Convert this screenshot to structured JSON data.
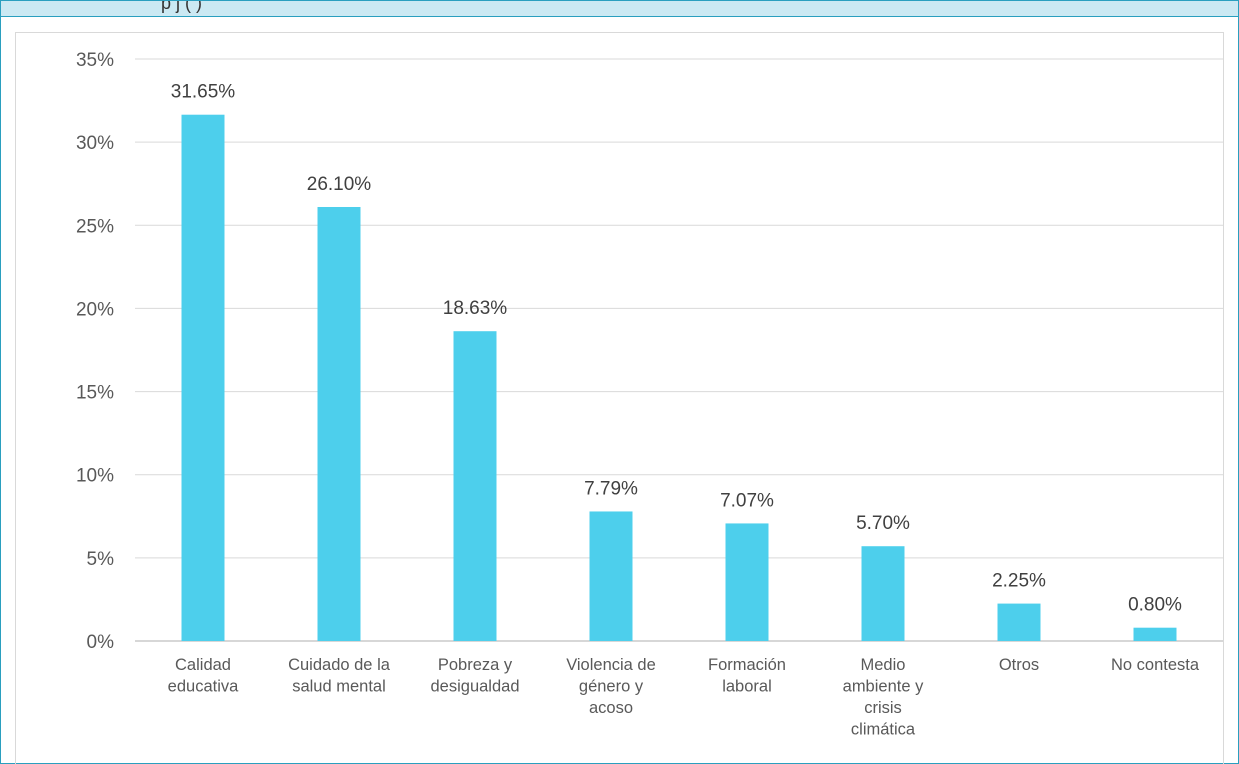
{
  "header": {
    "title": "p                      j        (   )"
  },
  "chart_data": {
    "type": "bar",
    "title": "",
    "xlabel": "",
    "ylabel": "",
    "categories": [
      [
        "Calidad",
        "educativa"
      ],
      [
        "Cuidado de la",
        "salud mental"
      ],
      [
        "Pobreza y",
        "desigualdad"
      ],
      [
        "Violencia de",
        "género y",
        "acoso"
      ],
      [
        "Formación",
        "laboral"
      ],
      [
        "Medio",
        "ambiente y",
        "crisis",
        "climática"
      ],
      [
        "Otros"
      ],
      [
        "No contesta"
      ]
    ],
    "values": [
      31.65,
      26.1,
      18.63,
      7.79,
      7.07,
      5.7,
      2.25,
      0.8
    ],
    "value_labels": [
      "31.65%",
      "26.10%",
      "18.63%",
      "7.79%",
      "7.07%",
      "5.70%",
      "2.25%",
      "0.80%"
    ],
    "yticks": [
      "0%",
      "5%",
      "10%",
      "15%",
      "20%",
      "25%",
      "30%",
      "35%"
    ],
    "ylim": [
      0,
      35
    ],
    "grid": true,
    "legend": "none",
    "bar_color": "#4dcfec",
    "grid_color": "#d9d9d9",
    "axis_color": "#bfbfbf"
  }
}
